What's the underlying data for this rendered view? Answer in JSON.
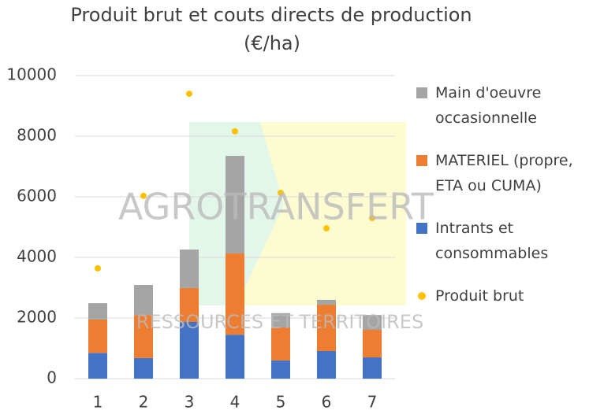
{
  "chart_data": {
    "type": "bar",
    "stacked": true,
    "title": "Produit brut et couts directs de production",
    "subtitle": "(€/ha)",
    "categories": [
      "1",
      "2",
      "3",
      "4",
      "5",
      "6",
      "7"
    ],
    "series": [
      {
        "name": "Intrants et consommables",
        "color": "#4472c4",
        "values": [
          850,
          680,
          1870,
          1450,
          600,
          910,
          700
        ]
      },
      {
        "name": "MATERIEL (propre, ETA ou CUMA)",
        "color": "#ed7d31",
        "values": [
          1100,
          1420,
          1120,
          2680,
          1090,
          1530,
          910
        ]
      },
      {
        "name": "Main d'oeuvre occasionnelle",
        "color": "#a5a5a5",
        "values": [
          540,
          990,
          1270,
          3220,
          470,
          160,
          490
        ]
      },
      {
        "name": "Produit brut",
        "type": "scatter",
        "color": "#ffc000",
        "values": [
          3640,
          6030,
          9400,
          8160,
          6130,
          4960,
          5300
        ]
      }
    ],
    "ylim": [
      0,
      10000
    ],
    "yticks": [
      0,
      2000,
      4000,
      6000,
      8000,
      10000
    ],
    "grid": true,
    "legend": "right"
  },
  "watermark": [
    "AGROTRANSFERT",
    "RESSOURCES ET TERRITOIRES"
  ]
}
